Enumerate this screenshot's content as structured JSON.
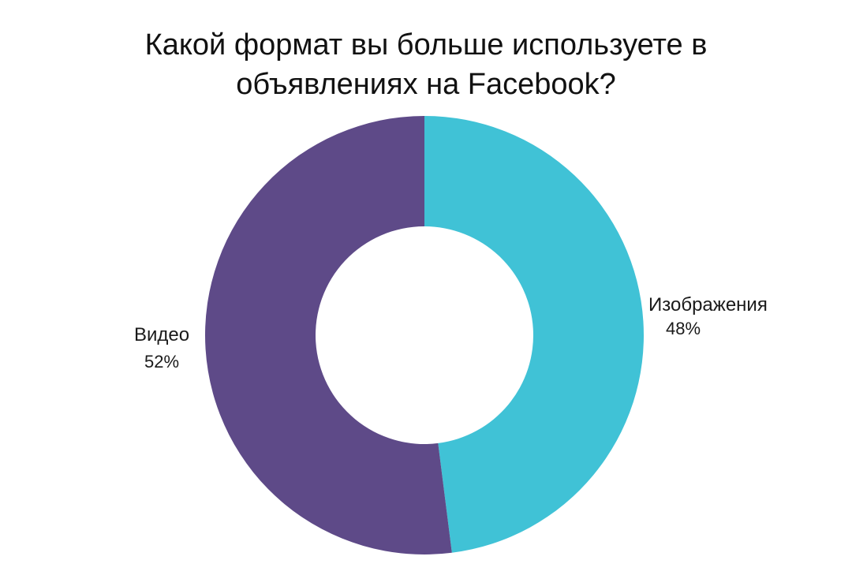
{
  "chart_data": {
    "type": "pie",
    "variant": "donut",
    "title": "Какой формат вы больше используете в объявлениях на Facebook?",
    "title_lines": [
      "Какой формат вы больше используете в",
      "объявлениях на Facebook?"
    ],
    "categories": [
      "Изображения",
      "Видео"
    ],
    "values": [
      48,
      52
    ],
    "value_labels": [
      "48%",
      "52%"
    ],
    "colors": [
      "#40C2D6",
      "#5E4A88"
    ],
    "start_angle": "12 o'clock, clockwise",
    "legend": "none (labels placed beside slices)"
  },
  "labels": {
    "images": {
      "name": "Изображения",
      "value": "48%"
    },
    "video": {
      "name": "Видео",
      "value": "52%"
    }
  }
}
